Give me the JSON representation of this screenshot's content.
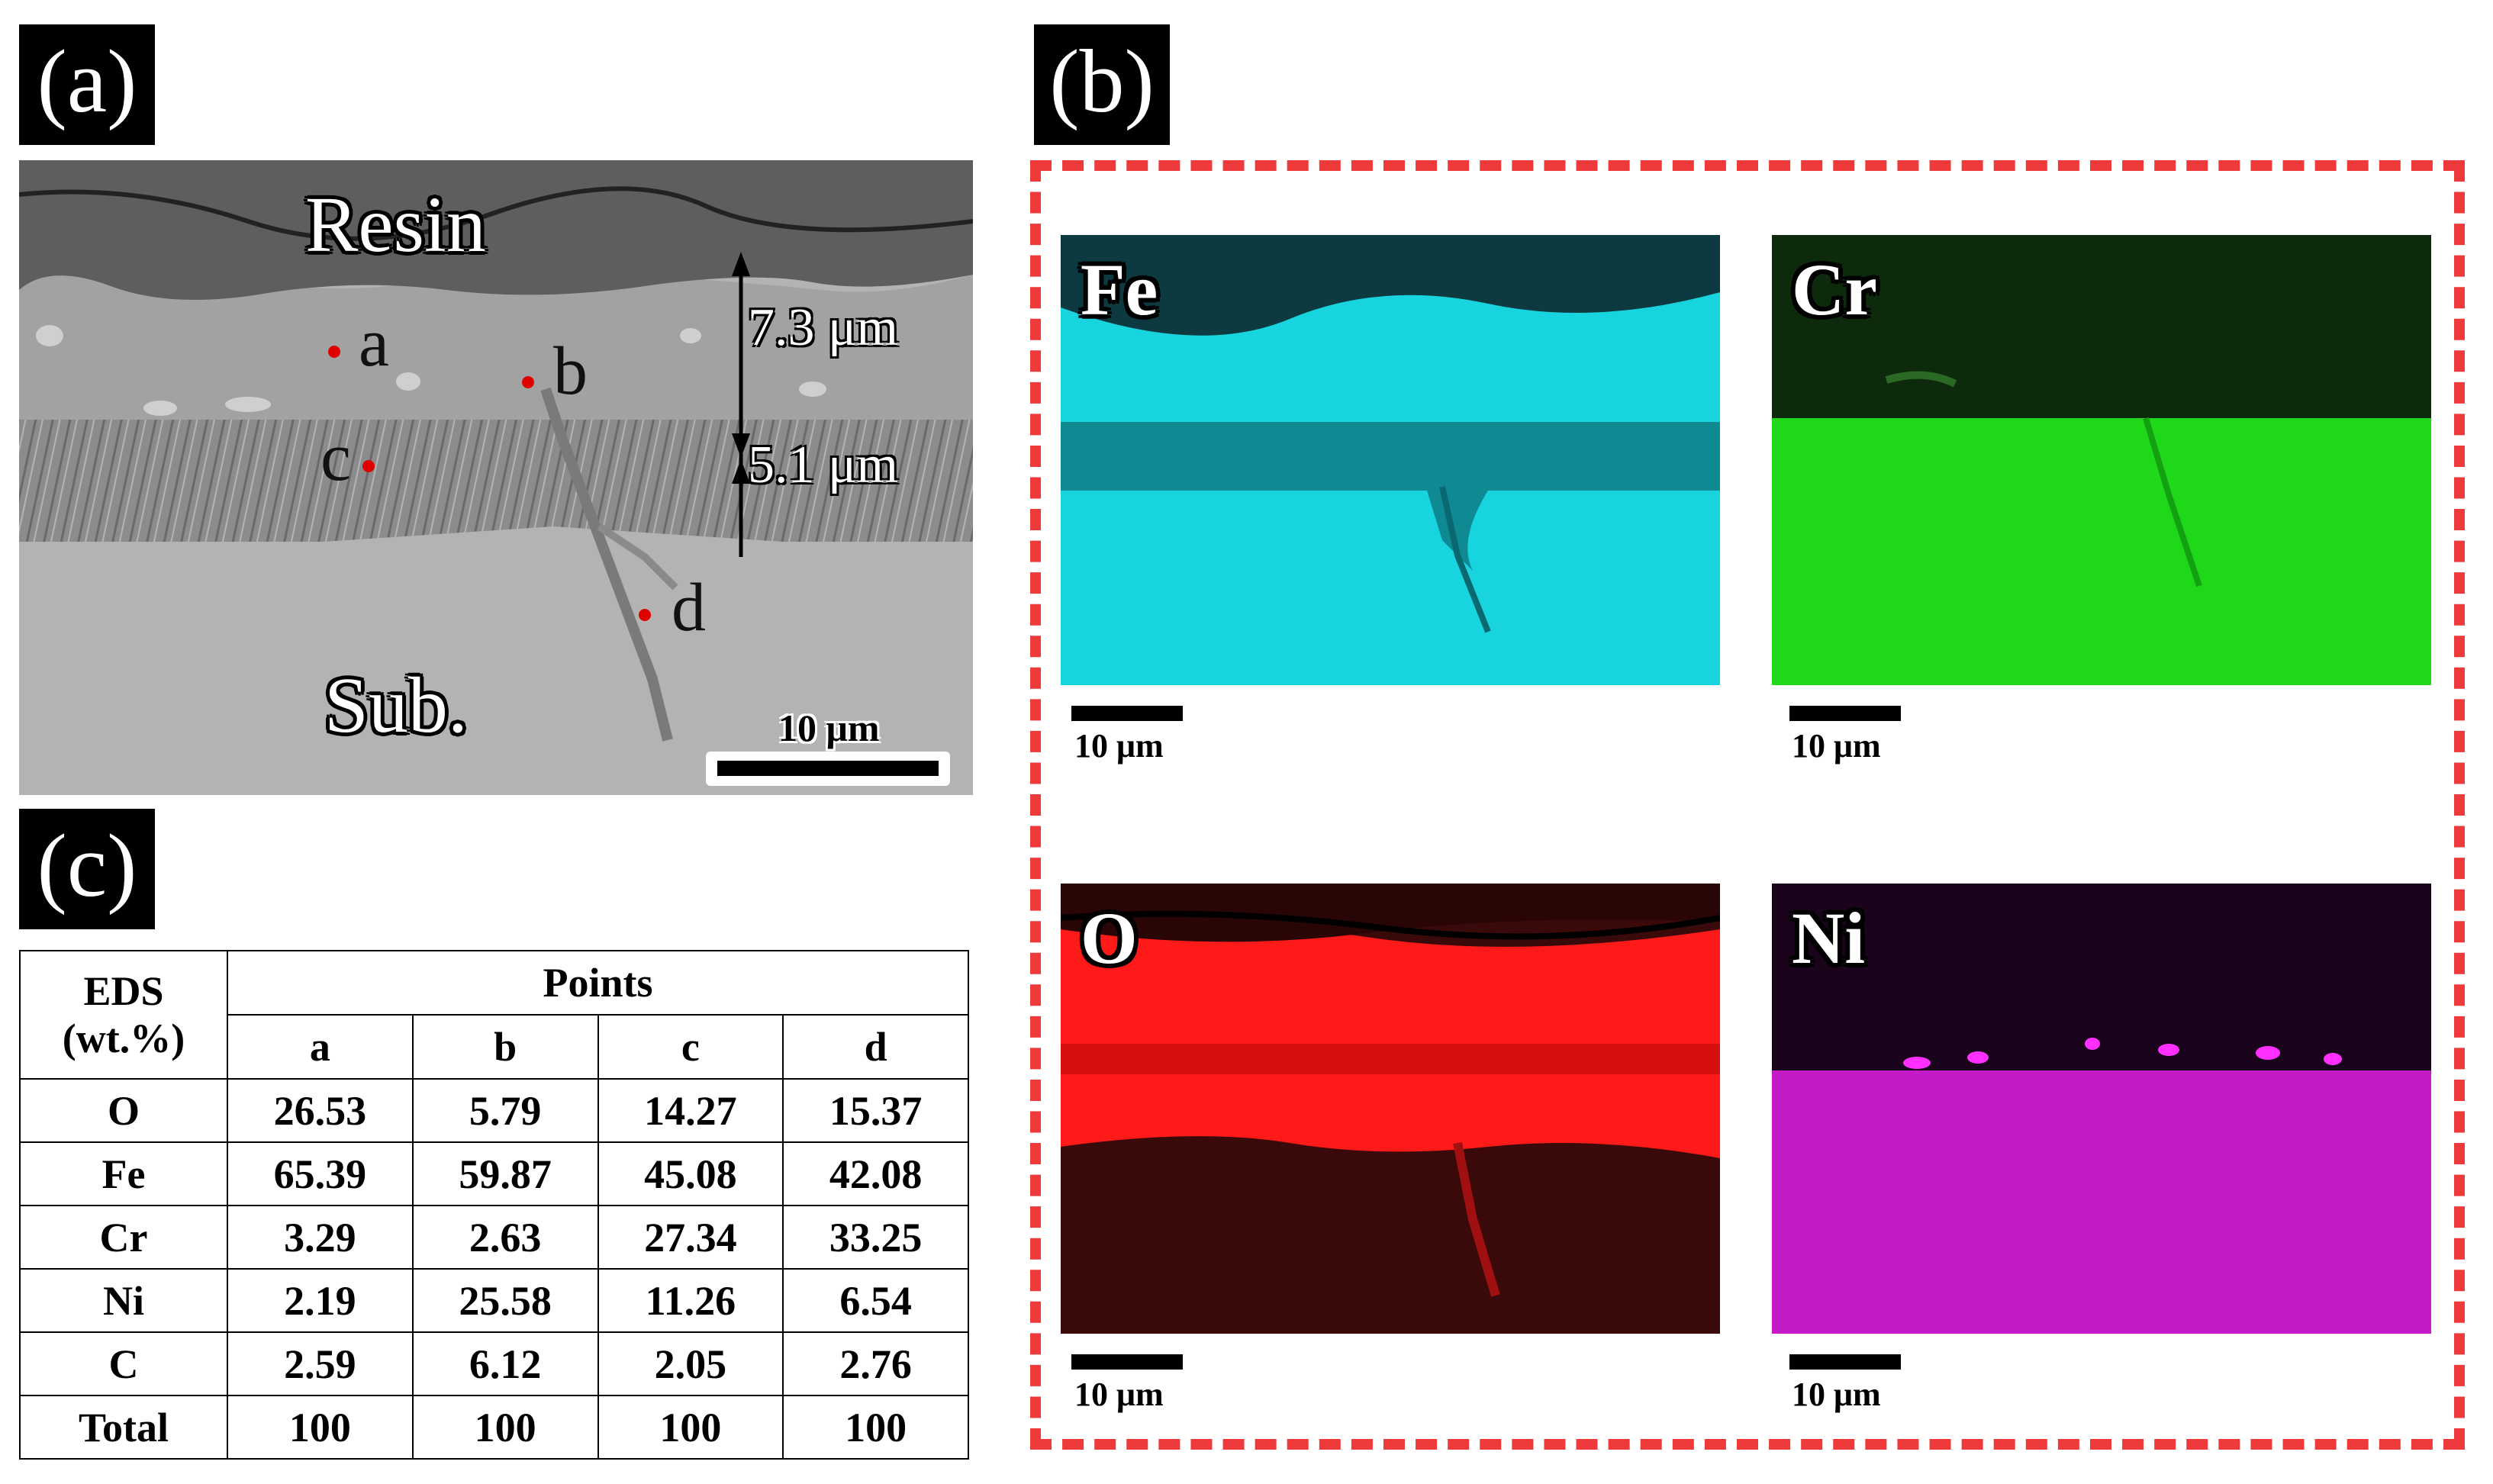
{
  "figure": {
    "panel_a": {
      "tag": "(a)",
      "region_labels": {
        "resin": "Resin",
        "substrate": "Sub."
      },
      "points": [
        "a",
        "b",
        "c",
        "d"
      ],
      "thickness_labels": [
        "7.3 μm",
        "5.1 μm"
      ],
      "scale_bar": "10 μm"
    },
    "panel_b": {
      "tag": "(b)",
      "maps": [
        {
          "element": "Fe",
          "color": "#00d8e0",
          "scale_bar": "10 μm"
        },
        {
          "element": "Cr",
          "color": "#22e01a",
          "scale_bar": "10 μm"
        },
        {
          "element": "O",
          "color": "#ff1a1a",
          "scale_bar": "10 μm"
        },
        {
          "element": "Ni",
          "color": "#e020e0",
          "scale_bar": "10 μm"
        }
      ],
      "frame_color": "#ee3a3a"
    },
    "panel_c": {
      "tag": "(c)",
      "header": {
        "corner_line1": "EDS",
        "corner_line2": "(wt.%)",
        "group": "Points",
        "columns": [
          "a",
          "b",
          "c",
          "d"
        ]
      },
      "rows": [
        {
          "label": "O",
          "values": [
            "26.53",
            "5.79",
            "14.27",
            "15.37"
          ]
        },
        {
          "label": "Fe",
          "values": [
            "65.39",
            "59.87",
            "45.08",
            "42.08"
          ]
        },
        {
          "label": "Cr",
          "values": [
            "3.29",
            "2.63",
            "27.34",
            "33.25"
          ]
        },
        {
          "label": "Ni",
          "values": [
            "2.19",
            "25.58",
            "11.26",
            "6.54"
          ]
        },
        {
          "label": "C",
          "values": [
            "2.59",
            "6.12",
            "2.05",
            "2.76"
          ]
        },
        {
          "label": "Total",
          "values": [
            "100",
            "100",
            "100",
            "100"
          ]
        }
      ]
    }
  }
}
